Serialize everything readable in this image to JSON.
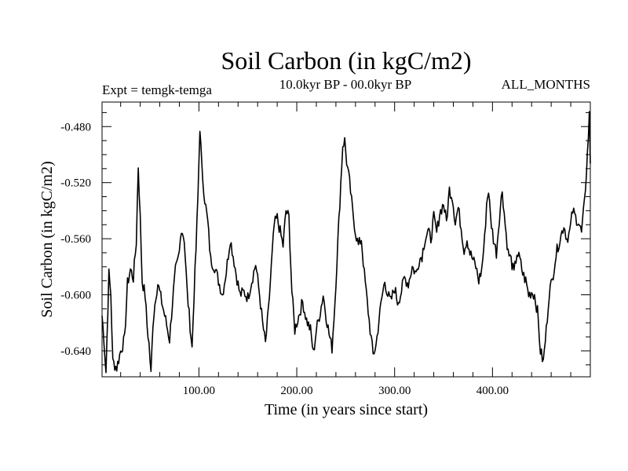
{
  "chart_data": {
    "type": "line",
    "title": "Soil Carbon (in kgC/m2)",
    "subtitle_left": "Expt = temgk-temga",
    "subtitle_center": "10.0kyr BP - 00.0kyr BP",
    "subtitle_right": "ALL_MONTHS",
    "xlabel": "Time (in years since start)",
    "ylabel": "Soil Carbon (in kgC/m2)",
    "xlim": [
      1,
      500
    ],
    "ylim": [
      -0.6585,
      -0.4625
    ],
    "x_ticks": [
      100,
      200,
      300,
      400
    ],
    "x_tick_labels": [
      "100.00",
      "200.00",
      "300.00",
      "400.00"
    ],
    "y_ticks": [
      -0.48,
      -0.52,
      -0.56,
      -0.6,
      -0.64
    ],
    "y_tick_labels": [
      "-0.480",
      "-0.520",
      "-0.560",
      "-0.600",
      "-0.640"
    ],
    "grid": false,
    "series": [
      {
        "name": "Soil Carbon",
        "keypoints": [
          [
            1,
            -0.615
          ],
          [
            3,
            -0.632
          ],
          [
            5,
            -0.655
          ],
          [
            8,
            -0.585
          ],
          [
            10,
            -0.6
          ],
          [
            12,
            -0.648
          ],
          [
            16,
            -0.652
          ],
          [
            20,
            -0.64
          ],
          [
            24,
            -0.632
          ],
          [
            27,
            -0.592
          ],
          [
            30,
            -0.582
          ],
          [
            33,
            -0.588
          ],
          [
            36,
            -0.562
          ],
          [
            38,
            -0.508
          ],
          [
            40,
            -0.545
          ],
          [
            42,
            -0.59
          ],
          [
            45,
            -0.6
          ],
          [
            47,
            -0.622
          ],
          [
            49,
            -0.635
          ],
          [
            51,
            -0.657
          ],
          [
            53,
            -0.62
          ],
          [
            56,
            -0.6
          ],
          [
            58,
            -0.592
          ],
          [
            62,
            -0.605
          ],
          [
            66,
            -0.618
          ],
          [
            70,
            -0.632
          ],
          [
            73,
            -0.605
          ],
          [
            76,
            -0.583
          ],
          [
            78,
            -0.578
          ],
          [
            80,
            -0.57
          ],
          [
            82,
            -0.552
          ],
          [
            85,
            -0.56
          ],
          [
            88,
            -0.598
          ],
          [
            91,
            -0.622
          ],
          [
            93,
            -0.638
          ],
          [
            95,
            -0.6
          ],
          [
            97,
            -0.568
          ],
          [
            99,
            -0.53
          ],
          [
            101,
            -0.48
          ],
          [
            103,
            -0.51
          ],
          [
            106,
            -0.532
          ],
          [
            109,
            -0.548
          ],
          [
            112,
            -0.575
          ],
          [
            116,
            -0.58
          ],
          [
            120,
            -0.59
          ],
          [
            124,
            -0.6
          ],
          [
            128,
            -0.583
          ],
          [
            132,
            -0.56
          ],
          [
            135,
            -0.572
          ],
          [
            138,
            -0.585
          ],
          [
            142,
            -0.6
          ],
          [
            146,
            -0.598
          ],
          [
            150,
            -0.602
          ],
          [
            154,
            -0.59
          ],
          [
            158,
            -0.578
          ],
          [
            162,
            -0.6
          ],
          [
            165,
            -0.62
          ],
          [
            168,
            -0.635
          ],
          [
            171,
            -0.612
          ],
          [
            174,
            -0.58
          ],
          [
            177,
            -0.55
          ],
          [
            180,
            -0.545
          ],
          [
            183,
            -0.555
          ],
          [
            186,
            -0.565
          ],
          [
            189,
            -0.54
          ],
          [
            192,
            -0.545
          ],
          [
            195,
            -0.598
          ],
          [
            198,
            -0.625
          ],
          [
            202,
            -0.615
          ],
          [
            206,
            -0.605
          ],
          [
            210,
            -0.618
          ],
          [
            214,
            -0.625
          ],
          [
            217,
            -0.642
          ],
          [
            220,
            -0.625
          ],
          [
            224,
            -0.612
          ],
          [
            227,
            -0.6
          ],
          [
            230,
            -0.615
          ],
          [
            233,
            -0.628
          ],
          [
            236,
            -0.638
          ],
          [
            239,
            -0.605
          ],
          [
            242,
            -0.562
          ],
          [
            245,
            -0.52
          ],
          [
            247,
            -0.493
          ],
          [
            249,
            -0.49
          ],
          [
            251,
            -0.505
          ],
          [
            254,
            -0.52
          ],
          [
            257,
            -0.54
          ],
          [
            260,
            -0.555
          ],
          [
            263,
            -0.565
          ],
          [
            266,
            -0.56
          ],
          [
            269,
            -0.585
          ],
          [
            272,
            -0.605
          ],
          [
            275,
            -0.625
          ],
          [
            278,
            -0.643
          ],
          [
            281,
            -0.636
          ],
          [
            284,
            -0.618
          ],
          [
            287,
            -0.602
          ],
          [
            290,
            -0.59
          ],
          [
            293,
            -0.6
          ],
          [
            296,
            -0.605
          ],
          [
            300,
            -0.595
          ],
          [
            303,
            -0.605
          ],
          [
            306,
            -0.6
          ],
          [
            310,
            -0.588
          ],
          [
            314,
            -0.592
          ],
          [
            318,
            -0.58
          ],
          [
            322,
            -0.585
          ],
          [
            325,
            -0.575
          ],
          [
            328,
            -0.572
          ],
          [
            331,
            -0.56
          ],
          [
            334,
            -0.555
          ],
          [
            337,
            -0.56
          ],
          [
            340,
            -0.545
          ],
          [
            343,
            -0.556
          ],
          [
            346,
            -0.542
          ],
          [
            350,
            -0.535
          ],
          [
            353,
            -0.548
          ],
          [
            356,
            -0.525
          ],
          [
            359,
            -0.53
          ],
          [
            362,
            -0.548
          ],
          [
            365,
            -0.538
          ],
          [
            368,
            -0.552
          ],
          [
            371,
            -0.568
          ],
          [
            374,
            -0.56
          ],
          [
            377,
            -0.57
          ],
          [
            380,
            -0.575
          ],
          [
            383,
            -0.58
          ],
          [
            386,
            -0.59
          ],
          [
            389,
            -0.582
          ],
          [
            392,
            -0.56
          ],
          [
            394,
            -0.535
          ],
          [
            396,
            -0.525
          ],
          [
            398,
            -0.545
          ],
          [
            401,
            -0.56
          ],
          [
            404,
            -0.57
          ],
          [
            407,
            -0.545
          ],
          [
            410,
            -0.525
          ],
          [
            413,
            -0.55
          ],
          [
            416,
            -0.57
          ],
          [
            419,
            -0.575
          ],
          [
            422,
            -0.585
          ],
          [
            425,
            -0.57
          ],
          [
            428,
            -0.575
          ],
          [
            431,
            -0.585
          ],
          [
            434,
            -0.59
          ],
          [
            437,
            -0.6
          ],
          [
            440,
            -0.598
          ],
          [
            443,
            -0.6
          ],
          [
            446,
            -0.612
          ],
          [
            449,
            -0.64
          ],
          [
            452,
            -0.648
          ],
          [
            455,
            -0.625
          ],
          [
            458,
            -0.598
          ],
          [
            461,
            -0.59
          ],
          [
            464,
            -0.575
          ],
          [
            467,
            -0.565
          ],
          [
            470,
            -0.558
          ],
          [
            473,
            -0.55
          ],
          [
            476,
            -0.56
          ],
          [
            479,
            -0.555
          ],
          [
            482,
            -0.54
          ],
          [
            485,
            -0.545
          ],
          [
            488,
            -0.548
          ],
          [
            491,
            -0.556
          ],
          [
            494,
            -0.535
          ],
          [
            497,
            -0.5
          ],
          [
            499,
            -0.472
          ],
          [
            500,
            -0.505
          ]
        ]
      }
    ]
  }
}
